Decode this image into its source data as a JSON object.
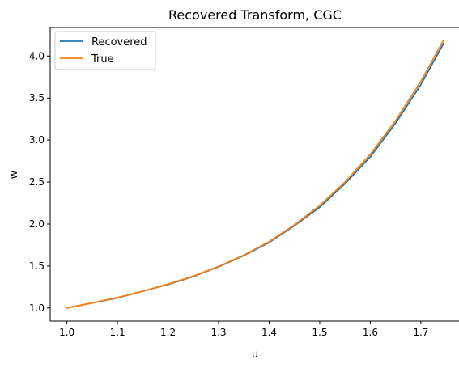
{
  "chart_data": {
    "type": "line",
    "title": "Recovered Transform, CGC",
    "xlabel": "u",
    "ylabel": "w",
    "xlim": [
      0.967,
      1.777
    ],
    "ylim": [
      0.844,
      4.34
    ],
    "x_ticks": [
      1.0,
      1.1,
      1.2,
      1.3,
      1.4,
      1.5,
      1.6,
      1.7
    ],
    "x_tick_labels": [
      "1.0",
      "1.1",
      "1.2",
      "1.3",
      "1.4",
      "1.5",
      "1.6",
      "1.7"
    ],
    "y_ticks": [
      1.0,
      1.5,
      2.0,
      2.5,
      3.0,
      3.5,
      4.0
    ],
    "y_tick_labels": [
      "1.0",
      "1.5",
      "2.0",
      "2.5",
      "3.0",
      "3.5",
      "4.0"
    ],
    "grid": false,
    "legend_position": "top-left",
    "series": [
      {
        "name": "Recovered",
        "color": "#1f77b4",
        "x": [
          1.0,
          1.05,
          1.1,
          1.15,
          1.2,
          1.25,
          1.3,
          1.35,
          1.4,
          1.45,
          1.5,
          1.55,
          1.6,
          1.65,
          1.7,
          1.745
        ],
        "y": [
          1.0,
          1.06,
          1.12,
          1.2,
          1.28,
          1.375,
          1.49,
          1.625,
          1.78,
          1.98,
          2.2,
          2.48,
          2.8,
          3.2,
          3.66,
          4.15
        ]
      },
      {
        "name": "True",
        "color": "#ff7f0e",
        "x": [
          1.0,
          1.05,
          1.1,
          1.15,
          1.2,
          1.25,
          1.3,
          1.35,
          1.4,
          1.45,
          1.5,
          1.55,
          1.6,
          1.65,
          1.7,
          1.745
        ],
        "y": [
          1.0,
          1.06,
          1.125,
          1.2,
          1.285,
          1.38,
          1.495,
          1.63,
          1.79,
          1.99,
          2.22,
          2.5,
          2.83,
          3.23,
          3.7,
          4.19
        ]
      }
    ]
  }
}
